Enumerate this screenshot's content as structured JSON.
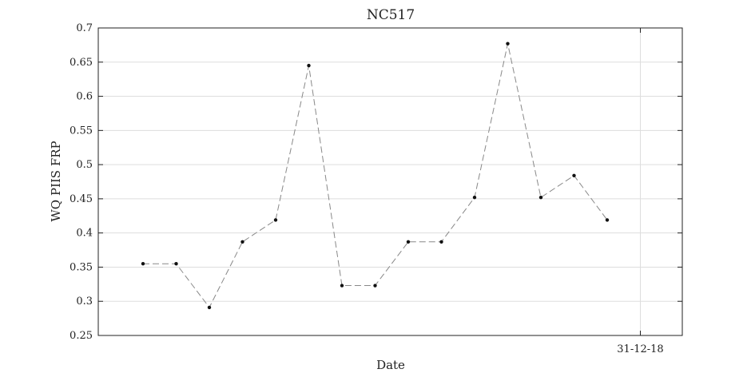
{
  "chart_data": {
    "type": "line",
    "title": "NC517",
    "xlabel": "Date",
    "ylabel": "WQ PIIS FRP",
    "ylim": [
      0.25,
      0.7
    ],
    "yticks": [
      "0.25",
      "0.3",
      "0.35",
      "0.4",
      "0.45",
      "0.5",
      "0.55",
      "0.6",
      "0.65",
      "0.7"
    ],
    "xticks": [
      "31-12-18"
    ],
    "grid": true,
    "series": [
      {
        "x": [
          1,
          2,
          3,
          4,
          5,
          6,
          7,
          8,
          9,
          10,
          11,
          12,
          13,
          14,
          15,
          16
        ],
        "y": [
          0.355,
          0.355,
          0.291,
          0.387,
          0.419,
          0.645,
          0.323,
          0.323,
          0.387,
          0.387,
          0.452,
          0.677,
          0.452,
          0.484,
          0.419,
          null
        ]
      }
    ]
  }
}
